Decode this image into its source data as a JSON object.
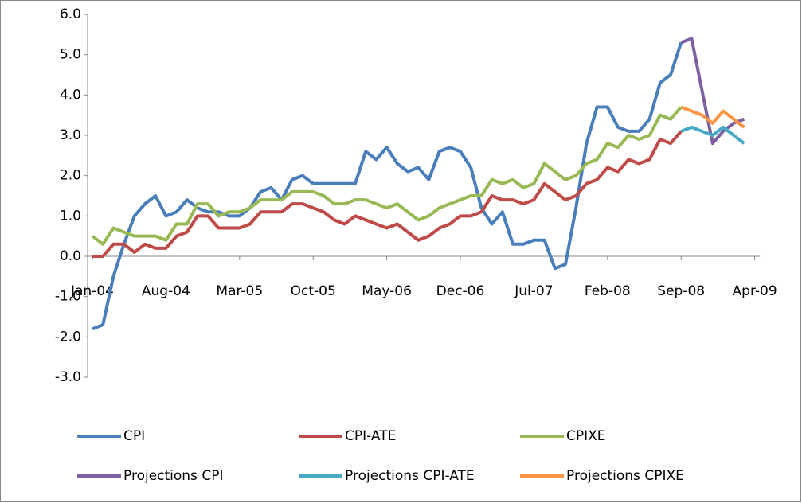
{
  "chart_data": {
    "type": "line",
    "categories": [
      "Jan-04",
      null,
      null,
      null,
      null,
      null,
      null,
      "Aug-04",
      null,
      null,
      null,
      null,
      null,
      null,
      "Mar-05",
      null,
      null,
      null,
      null,
      null,
      null,
      "Oct-05",
      null,
      null,
      null,
      null,
      null,
      null,
      "May-06",
      null,
      null,
      null,
      null,
      null,
      null,
      "Dec-06",
      null,
      null,
      null,
      null,
      null,
      null,
      "Jul-07",
      null,
      null,
      null,
      null,
      null,
      null,
      "Feb-08",
      null,
      null,
      null,
      null,
      null,
      null,
      "Sep-08",
      null,
      null,
      null,
      null,
      null,
      null,
      "Apr-09"
    ],
    "series": [
      {
        "name": "CPI",
        "color": "#4a7ebb",
        "values": [
          -1.8,
          -1.7,
          -0.5,
          0.3,
          1.0,
          1.3,
          1.5,
          1.0,
          1.1,
          1.4,
          1.2,
          1.1,
          1.1,
          1.0,
          1.0,
          1.2,
          1.6,
          1.7,
          1.4,
          1.9,
          2.0,
          1.8,
          1.8,
          1.8,
          1.8,
          1.8,
          2.6,
          2.4,
          2.7,
          2.3,
          2.1,
          2.2,
          1.9,
          2.6,
          2.7,
          2.6,
          2.2,
          1.2,
          0.8,
          1.1,
          0.3,
          0.3,
          0.4,
          0.4,
          -0.3,
          -0.2,
          1.2,
          2.8,
          3.7,
          3.7,
          3.2,
          3.1,
          3.1,
          3.4,
          4.3,
          4.5,
          5.3,
          null,
          null,
          null,
          null,
          null,
          null,
          null
        ]
      },
      {
        "name": "CPI-ATE",
        "color": "#be4b48",
        "values": [
          0.0,
          0.0,
          0.3,
          0.3,
          0.1,
          0.3,
          0.2,
          0.2,
          0.5,
          0.6,
          1.0,
          1.0,
          0.7,
          0.7,
          0.7,
          0.8,
          1.1,
          1.1,
          1.1,
          1.3,
          1.3,
          1.2,
          1.1,
          0.9,
          0.8,
          1.0,
          0.9,
          0.8,
          0.7,
          0.8,
          0.6,
          0.4,
          0.5,
          0.7,
          0.8,
          1.0,
          1.0,
          1.1,
          1.5,
          1.4,
          1.4,
          1.3,
          1.4,
          1.8,
          1.6,
          1.4,
          1.5,
          1.8,
          1.9,
          2.2,
          2.1,
          2.4,
          2.3,
          2.4,
          2.9,
          2.8,
          3.1,
          null,
          null,
          null,
          null,
          null,
          null,
          null
        ]
      },
      {
        "name": "CPIXE",
        "color": "#98b954",
        "values": [
          0.5,
          0.3,
          0.7,
          0.6,
          0.5,
          0.5,
          0.5,
          0.4,
          0.8,
          0.8,
          1.3,
          1.3,
          1.0,
          1.1,
          1.1,
          1.2,
          1.4,
          1.4,
          1.4,
          1.6,
          1.6,
          1.6,
          1.5,
          1.3,
          1.3,
          1.4,
          1.4,
          1.3,
          1.2,
          1.3,
          1.1,
          0.9,
          1.0,
          1.2,
          1.3,
          1.4,
          1.5,
          1.5,
          1.9,
          1.8,
          1.9,
          1.7,
          1.8,
          2.3,
          2.1,
          1.9,
          2.0,
          2.3,
          2.4,
          2.8,
          2.7,
          3.0,
          2.9,
          3.0,
          3.5,
          3.4,
          3.7,
          null,
          null,
          null,
          null,
          null,
          null,
          null
        ]
      },
      {
        "name": "Projections CPI",
        "color": "#7d60a0",
        "values": [
          null,
          null,
          null,
          null,
          null,
          null,
          null,
          null,
          null,
          null,
          null,
          null,
          null,
          null,
          null,
          null,
          null,
          null,
          null,
          null,
          null,
          null,
          null,
          null,
          null,
          null,
          null,
          null,
          null,
          null,
          null,
          null,
          null,
          null,
          null,
          null,
          null,
          null,
          null,
          null,
          null,
          null,
          null,
          null,
          null,
          null,
          null,
          null,
          null,
          null,
          null,
          null,
          null,
          null,
          null,
          null,
          5.3,
          5.4,
          4.1,
          2.8,
          3.1,
          3.3,
          3.4,
          null
        ]
      },
      {
        "name": "Projections CPI-ATE",
        "color": "#46aac5",
        "values": [
          null,
          null,
          null,
          null,
          null,
          null,
          null,
          null,
          null,
          null,
          null,
          null,
          null,
          null,
          null,
          null,
          null,
          null,
          null,
          null,
          null,
          null,
          null,
          null,
          null,
          null,
          null,
          null,
          null,
          null,
          null,
          null,
          null,
          null,
          null,
          null,
          null,
          null,
          null,
          null,
          null,
          null,
          null,
          null,
          null,
          null,
          null,
          null,
          null,
          null,
          null,
          null,
          null,
          null,
          null,
          null,
          3.1,
          3.2,
          3.1,
          3.0,
          3.2,
          3.0,
          2.8,
          null
        ]
      },
      {
        "name": "Projections CPIXE",
        "color": "#f79646",
        "values": [
          null,
          null,
          null,
          null,
          null,
          null,
          null,
          null,
          null,
          null,
          null,
          null,
          null,
          null,
          null,
          null,
          null,
          null,
          null,
          null,
          null,
          null,
          null,
          null,
          null,
          null,
          null,
          null,
          null,
          null,
          null,
          null,
          null,
          null,
          null,
          null,
          null,
          null,
          null,
          null,
          null,
          null,
          null,
          null,
          null,
          null,
          null,
          null,
          null,
          null,
          null,
          null,
          null,
          null,
          null,
          null,
          3.7,
          3.6,
          3.5,
          3.3,
          3.6,
          3.4,
          3.2,
          null
        ]
      }
    ],
    "ylim": [
      -3,
      6
    ],
    "yticks": [
      {
        "value": -3,
        "label": "-3.0"
      },
      {
        "value": -2,
        "label": "-2.0"
      },
      {
        "value": -1,
        "label": "-1.0"
      },
      {
        "value": 0,
        "label": "0.0"
      },
      {
        "value": 1,
        "label": "1.0"
      },
      {
        "value": 2,
        "label": "2.0"
      },
      {
        "value": 3,
        "label": "3.0"
      },
      {
        "value": 4,
        "label": "4.0"
      },
      {
        "value": 5,
        "label": "5.0"
      },
      {
        "value": 6,
        "label": "6.0"
      }
    ],
    "grid": false,
    "legend": "bottom"
  }
}
